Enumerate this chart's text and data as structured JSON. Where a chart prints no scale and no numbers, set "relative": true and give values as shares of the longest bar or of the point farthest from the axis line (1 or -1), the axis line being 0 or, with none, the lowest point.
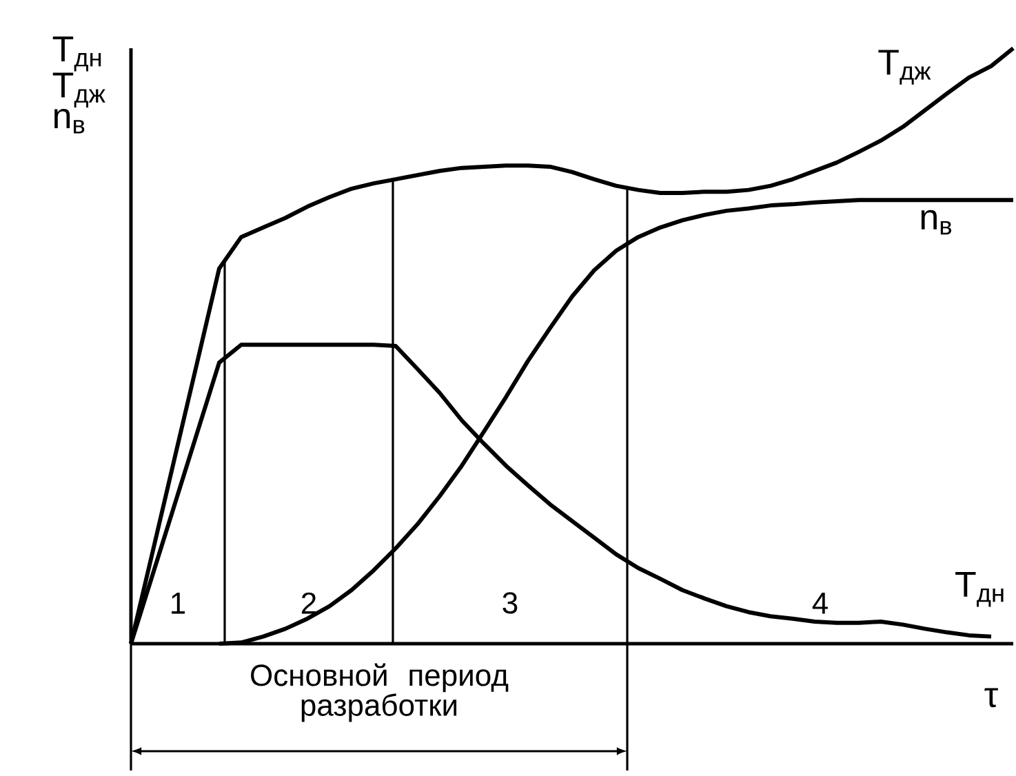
{
  "chart_data": {
    "type": "line",
    "relative": true,
    "xlabel": "τ",
    "ylabel": "T$_{дн}$ T$_{дж}$ n$_{в}$",
    "categories": [
      null,
      null,
      null,
      null,
      null,
      null,
      null,
      null,
      null,
      null,
      null,
      null,
      null,
      null,
      null,
      null,
      null,
      null,
      null,
      null,
      null,
      null,
      null,
      null,
      null,
      null,
      null,
      null,
      null,
      null,
      null,
      null,
      null,
      null,
      null,
      null,
      null,
      null,
      null,
      null,
      null
    ],
    "series": [
      {
        "name": "T$_{дж}$",
        "color": "#000000",
        "values": [
          0,
          0.157,
          0.315,
          0.472,
          0.63,
          0.683,
          0.699,
          0.715,
          0.734,
          0.75,
          0.764,
          0.773,
          0.78,
          0.787,
          0.794,
          0.799,
          0.801,
          0.803,
          0.803,
          0.801,
          0.792,
          0.78,
          0.769,
          0.762,
          0.757,
          0.757,
          0.759,
          0.759,
          0.762,
          0.769,
          0.78,
          0.794,
          0.808,
          0.826,
          0.845,
          0.868,
          0.896,
          0.924,
          0.951,
          0.97,
          1
        ]
      },
      {
        "name": "n$_{в}$",
        "color": "#000000",
        "values": [
          null,
          null,
          null,
          null,
          0,
          0.002,
          0.012,
          0.025,
          0.042,
          0.063,
          0.09,
          0.123,
          0.16,
          0.201,
          0.248,
          0.299,
          0.356,
          0.414,
          0.475,
          0.53,
          0.583,
          0.627,
          0.66,
          0.683,
          0.699,
          0.711,
          0.72,
          0.727,
          0.731,
          0.736,
          0.738,
          0.741,
          0.743,
          0.745,
          0.745,
          0.745,
          0.745,
          0.745,
          0.745,
          0.745,
          0.745
        ]
      },
      {
        "name": "T$_{дн}$",
        "color": "#000000",
        "values": [
          0,
          0.118,
          0.236,
          0.354,
          0.472,
          0.502,
          0.502,
          0.502,
          0.502,
          0.502,
          0.502,
          0.502,
          0.5,
          0.461,
          0.421,
          0.375,
          0.336,
          0.299,
          0.266,
          0.234,
          0.206,
          0.178,
          0.15,
          0.127,
          0.109,
          0.09,
          0.076,
          0.063,
          0.053,
          0.046,
          0.042,
          0.037,
          0.035,
          0.035,
          0.037,
          0.032,
          0.025,
          0.019,
          0.014,
          0.012,
          null
        ]
      }
    ],
    "annotations": [
      "1",
      "2",
      "3",
      "4",
      "Основной период разработки"
    ]
  }
}
